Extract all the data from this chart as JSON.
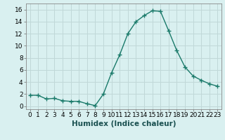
{
  "x": [
    0,
    1,
    2,
    3,
    4,
    5,
    6,
    7,
    8,
    9,
    10,
    11,
    12,
    13,
    14,
    15,
    16,
    17,
    18,
    19,
    20,
    21,
    22,
    23
  ],
  "y": [
    1.8,
    1.8,
    1.2,
    1.3,
    0.9,
    0.8,
    0.8,
    0.4,
    0.1,
    2.0,
    5.5,
    8.5,
    12.0,
    14.0,
    15.0,
    15.8,
    15.7,
    12.5,
    9.2,
    6.5,
    5.0,
    4.3,
    3.7,
    3.3
  ],
  "line_color": "#1a7a6a",
  "marker": "+",
  "marker_size": 5,
  "bg_color": "#d9f0f0",
  "grid_color": "#c0d8d8",
  "xlabel": "Humidex (Indice chaleur)",
  "xlim": [
    -0.5,
    23.5
  ],
  "ylim": [
    -0.5,
    17
  ],
  "yticks": [
    0,
    2,
    4,
    6,
    8,
    10,
    12,
    14,
    16
  ],
  "xticks": [
    0,
    1,
    2,
    3,
    4,
    5,
    6,
    7,
    8,
    9,
    10,
    11,
    12,
    13,
    14,
    15,
    16,
    17,
    18,
    19,
    20,
    21,
    22,
    23
  ],
  "tick_fontsize": 6.5,
  "xlabel_fontsize": 7.5,
  "linewidth": 1.0
}
